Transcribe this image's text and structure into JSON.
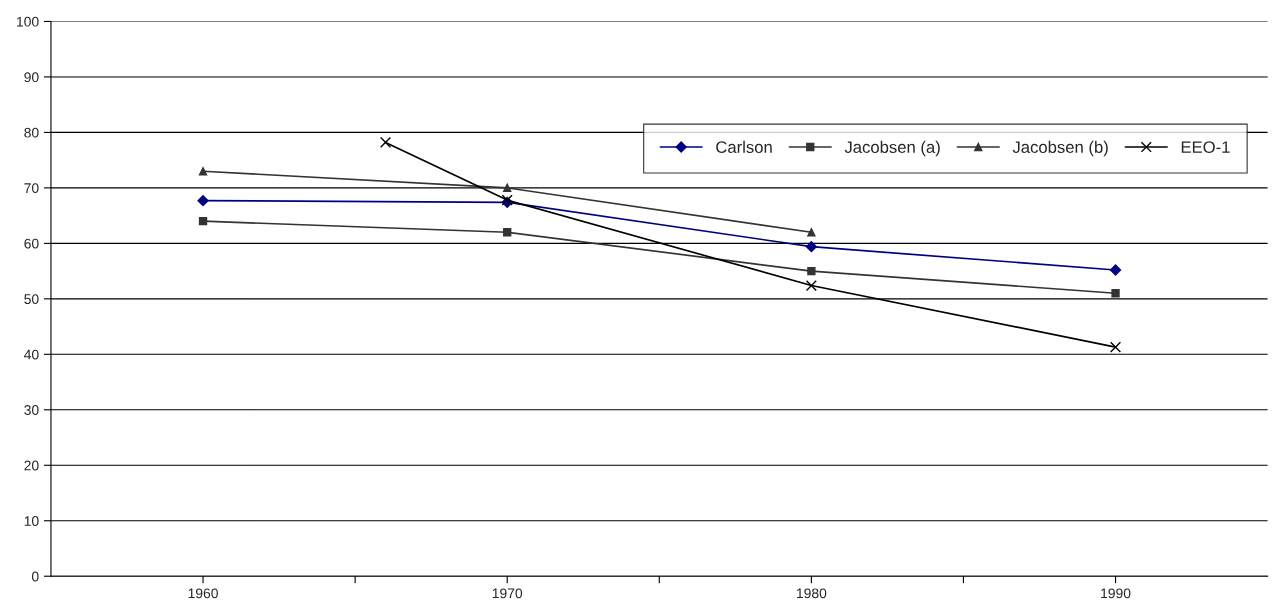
{
  "chart_data": {
    "type": "line",
    "xlim": [
      1955,
      1995
    ],
    "xticks": [
      1960,
      {
        "value": 1965,
        "label": null
      },
      1970,
      {
        "value": 1975,
        "label": null
      },
      1980,
      {
        "value": 1985,
        "label": null
      },
      1990
    ],
    "ylim": [
      0,
      100
    ],
    "yticks": [
      0,
      10,
      20,
      30,
      40,
      50,
      60,
      70,
      80,
      90,
      100
    ],
    "grid": "y",
    "legend": "top right",
    "series": [
      {
        "name": "Carlson",
        "color": "#000080",
        "marker": "diamond",
        "x": [
          1960,
          1970,
          1980,
          1990
        ],
        "values": [
          67.7,
          67.4,
          59.4,
          55.2
        ]
      },
      {
        "name": "Jacobsen (a)",
        "color": "#333333",
        "marker": "square",
        "x": [
          1960,
          1970,
          1980,
          1990
        ],
        "values": [
          64,
          62,
          55,
          51
        ]
      },
      {
        "name": "Jacobsen (b)",
        "color": "#333333",
        "marker": "triangle",
        "x": [
          1960,
          1970,
          1980
        ],
        "values": [
          73,
          70,
          62
        ]
      },
      {
        "name": "EEO-1",
        "color": "#000000",
        "marker": "cross",
        "x": [
          1966,
          1970,
          1980,
          1990
        ],
        "values": [
          78.2,
          67.8,
          52.4,
          41.3
        ]
      }
    ]
  }
}
